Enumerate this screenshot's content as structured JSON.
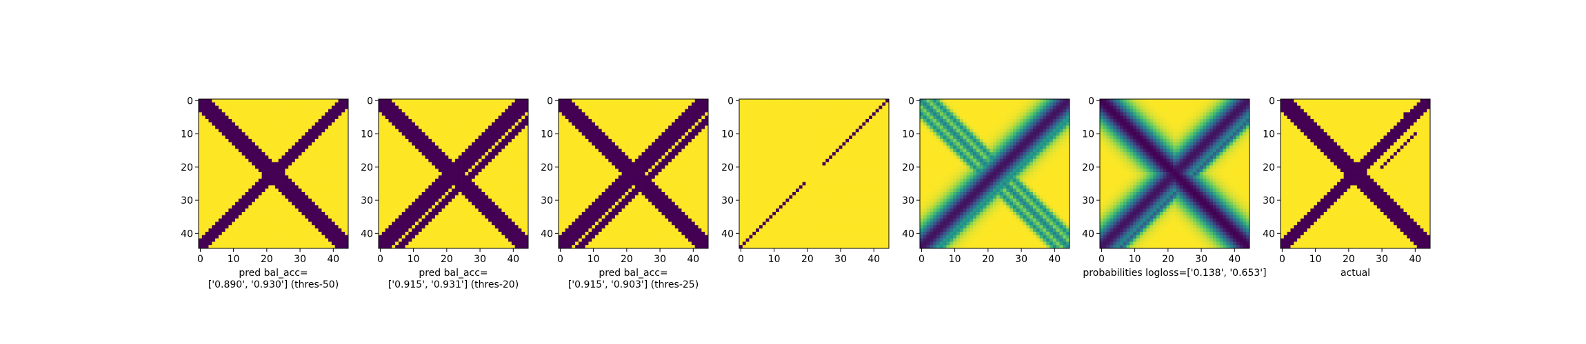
{
  "colors": {
    "viridis": [
      "#440154",
      "#3b528b",
      "#21918c",
      "#5ec962",
      "#fde725"
    ],
    "axis": "#000000",
    "background": "#ffffff"
  },
  "chart_data": [
    {
      "type": "heatmap",
      "title": "",
      "matrix_size": 45,
      "xticks": [
        0,
        10,
        20,
        30,
        40
      ],
      "yticks": [
        0,
        10,
        20,
        30,
        40
      ],
      "xlim": [
        0,
        44
      ],
      "ylim": [
        44,
        0
      ],
      "caption": [
        "pred bal_acc=",
        "['0.890', '0.930'] (thres-50)"
      ],
      "pattern": "binary",
      "values_summary": "binary matrix (0/1): thick main-diagonal band and thick anti-diagonal band",
      "bands": [
        {
          "kind": "main",
          "offset": 0,
          "width": 2.2,
          "value": 0
        },
        {
          "kind": "anti",
          "sum": 44,
          "width": 2.0,
          "value": 0
        },
        {
          "kind": "anti",
          "sum": 44,
          "width": 1.2,
          "value": 0,
          "from": 12,
          "to": 26
        }
      ]
    },
    {
      "type": "heatmap",
      "title": "",
      "matrix_size": 45,
      "xticks": [
        0,
        10,
        20,
        30,
        40
      ],
      "yticks": [
        0,
        10,
        20,
        30,
        40
      ],
      "xlim": [
        0,
        44
      ],
      "ylim": [
        44,
        0
      ],
      "caption": [
        "pred bal_acc=",
        "['0.915', '0.931'] (thres-20)"
      ],
      "pattern": "binary",
      "values_summary": "binary matrix (0/1): main-diagonal band, anti-diagonal band and a thinner parallel anti-diagonal line",
      "bands": [
        {
          "kind": "main",
          "offset": 0,
          "width": 2.4,
          "value": 0
        },
        {
          "kind": "anti",
          "sum": 44,
          "width": 2.2,
          "value": 0
        },
        {
          "kind": "anti",
          "sum": 50,
          "width": 0.8,
          "value": 0
        }
      ]
    },
    {
      "type": "heatmap",
      "title": "",
      "matrix_size": 45,
      "xticks": [
        0,
        10,
        20,
        30,
        40
      ],
      "yticks": [
        0,
        10,
        20,
        30,
        40
      ],
      "xlim": [
        0,
        44
      ],
      "ylim": [
        44,
        0
      ],
      "caption": [
        "pred bal_acc=",
        "['0.915', '0.903'] (thres-25)"
      ],
      "pattern": "binary",
      "values_summary": "binary matrix (0/1): main-diagonal band, anti-diagonal band and a thinner parallel anti-diagonal line",
      "bands": [
        {
          "kind": "main",
          "offset": 0,
          "width": 2.4,
          "value": 0
        },
        {
          "kind": "anti",
          "sum": 44,
          "width": 2.4,
          "value": 0
        },
        {
          "kind": "anti",
          "sum": 50,
          "width": 0.9,
          "value": 0
        }
      ]
    },
    {
      "type": "heatmap",
      "title": "",
      "matrix_size": 45,
      "xticks": [
        0,
        10,
        20,
        30,
        40
      ],
      "yticks": [
        0,
        10,
        20,
        30,
        40
      ],
      "xlim": [
        0,
        44
      ],
      "ylim": [
        44,
        0
      ],
      "caption": [],
      "pattern": "binary",
      "values_summary": "binary matrix: single thin anti-diagonal line of 0s (i + j = 44) with a gap near the center",
      "bands": [
        {
          "kind": "anti",
          "sum": 44,
          "width": 0.5,
          "value": 0,
          "gap": [
            20,
            24
          ]
        }
      ]
    },
    {
      "type": "heatmap",
      "title": "",
      "matrix_size": 45,
      "xticks": [
        0,
        10,
        20,
        30,
        40
      ],
      "yticks": [
        0,
        10,
        20,
        30,
        40
      ],
      "xlim": [
        0,
        44
      ],
      "ylim": [
        44,
        0
      ],
      "caption": [],
      "pattern": "continuous",
      "values_summary": "continuous matrix 0..1: fuzzy anti-diagonal band plus lighter main-diagonal and parallel lines",
      "bands": [
        {
          "kind": "anti",
          "sum": 44,
          "width": 3.0,
          "value": 0.05
        },
        {
          "kind": "main",
          "offset": 0,
          "width": 1.0,
          "value": 0.45
        },
        {
          "kind": "main",
          "offset": 4,
          "width": 0.8,
          "value": 0.5
        },
        {
          "kind": "main",
          "offset": -4,
          "width": 0.8,
          "value": 0.5
        },
        {
          "kind": "anti",
          "sum": 50,
          "width": 1.0,
          "value": 0.5
        }
      ]
    },
    {
      "type": "heatmap",
      "title": "",
      "matrix_size": 45,
      "xticks": [
        0,
        10,
        20,
        30,
        40
      ],
      "yticks": [
        0,
        10,
        20,
        30,
        40
      ],
      "xlim": [
        0,
        44
      ],
      "ylim": [
        44,
        0
      ],
      "caption": [
        "probabilities logloss=['0.138', '0.653']"
      ],
      "pattern": "continuous",
      "values_summary": "continuous matrix 0..1: strong main-diagonal and anti-diagonal bands with a parallel anti-diagonal line",
      "bands": [
        {
          "kind": "main",
          "offset": 0,
          "width": 3.2,
          "value": 0.0
        },
        {
          "kind": "anti",
          "sum": 44,
          "width": 3.0,
          "value": 0.05
        },
        {
          "kind": "anti",
          "sum": 50,
          "width": 1.0,
          "value": 0.3
        },
        {
          "kind": "main",
          "offset": 5,
          "width": 0.8,
          "value": 0.6
        }
      ]
    },
    {
      "type": "heatmap",
      "title": "",
      "matrix_size": 45,
      "xticks": [
        0,
        10,
        20,
        30,
        40
      ],
      "yticks": [
        0,
        10,
        20,
        30,
        40
      ],
      "xlim": [
        0,
        44
      ],
      "ylim": [
        44,
        0
      ],
      "caption": [
        "actual"
      ],
      "pattern": "binary",
      "values_summary": "binary matrix (0/1): main-diagonal band, anti-diagonal band, a thin parallel line and a few scattered points",
      "bands": [
        {
          "kind": "main",
          "offset": 0,
          "width": 2.2,
          "value": 0
        },
        {
          "kind": "anti",
          "sum": 44,
          "width": 2.0,
          "value": 0
        },
        {
          "kind": "anti",
          "sum": 50,
          "width": 0.7,
          "value": 0,
          "from": 10,
          "to": 20
        }
      ],
      "points": [
        [
          37,
          4
        ],
        [
          43,
          3
        ],
        [
          44,
          1
        ],
        [
          0,
          44
        ],
        [
          1,
          44
        ]
      ]
    }
  ]
}
